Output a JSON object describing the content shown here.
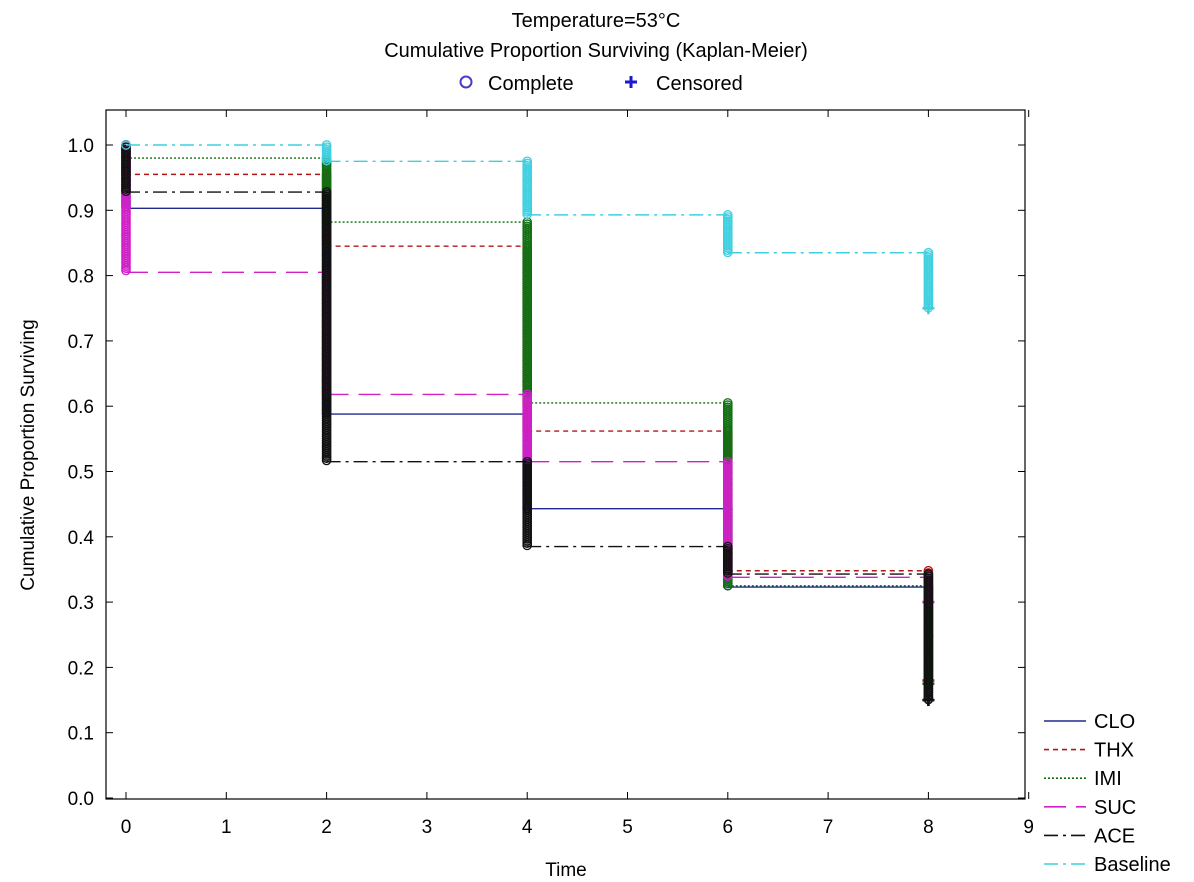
{
  "chart_data": {
    "type": "line",
    "subtype": "kaplan-meier-step",
    "title": "Temperature=53°C",
    "subtitle": "Cumulative Proportion Surviving (Kaplan-Meier)",
    "marker_legend": [
      {
        "label": "Complete",
        "marker": "circle",
        "color": "#4a3cc8"
      },
      {
        "label": "Censored",
        "marker": "plus",
        "color": "#1a1ad0"
      }
    ],
    "xlabel": "Time",
    "ylabel": "Cumulative Proportion Surviving",
    "xlim": [
      -0.2,
      9
    ],
    "ylim": [
      0,
      1.05
    ],
    "xticks": [
      "0",
      "1",
      "2",
      "3",
      "4",
      "5",
      "6",
      "7",
      "8",
      "9"
    ],
    "yticks": [
      "0.0",
      "0.1",
      "0.2",
      "0.3",
      "0.4",
      "0.5",
      "0.6",
      "0.7",
      "0.8",
      "0.9",
      "1.0"
    ],
    "grid": false,
    "legend_position": "bottom-right, outside plot",
    "series": [
      {
        "name": "CLO",
        "color": "#1f2a8c",
        "dash": "solid",
        "x": [
          0,
          2,
          4,
          6,
          8
        ],
        "y": [
          0.903,
          0.588,
          0.443,
          0.323,
          0.15
        ]
      },
      {
        "name": "THX",
        "color": "#b01818",
        "dash": "short-dash",
        "x": [
          0,
          2,
          4,
          6,
          8
        ],
        "y": [
          0.955,
          0.845,
          0.562,
          0.348,
          0.18
        ]
      },
      {
        "name": "IMI",
        "color": "#126f12",
        "dash": "dotted",
        "x": [
          0,
          2,
          4,
          6,
          8
        ],
        "y": [
          0.98,
          0.882,
          0.605,
          0.325,
          0.175
        ]
      },
      {
        "name": "SUC",
        "color": "#d020c8",
        "dash": "long-dash",
        "x": [
          0,
          2,
          4,
          6,
          8
        ],
        "y": [
          0.805,
          0.618,
          0.515,
          0.338,
          0.3
        ]
      },
      {
        "name": "ACE",
        "color": "#111111",
        "dash": "dash-dot",
        "x": [
          0,
          2,
          4,
          6,
          8
        ],
        "y": [
          0.928,
          0.515,
          0.385,
          0.343,
          0.15
        ]
      },
      {
        "name": "Baseline",
        "color": "#3ed0e0",
        "dash": "dash-dot",
        "x": [
          0,
          2,
          4,
          6,
          8
        ],
        "y": [
          1.0,
          0.975,
          0.893,
          0.835,
          0.75
        ]
      }
    ]
  }
}
